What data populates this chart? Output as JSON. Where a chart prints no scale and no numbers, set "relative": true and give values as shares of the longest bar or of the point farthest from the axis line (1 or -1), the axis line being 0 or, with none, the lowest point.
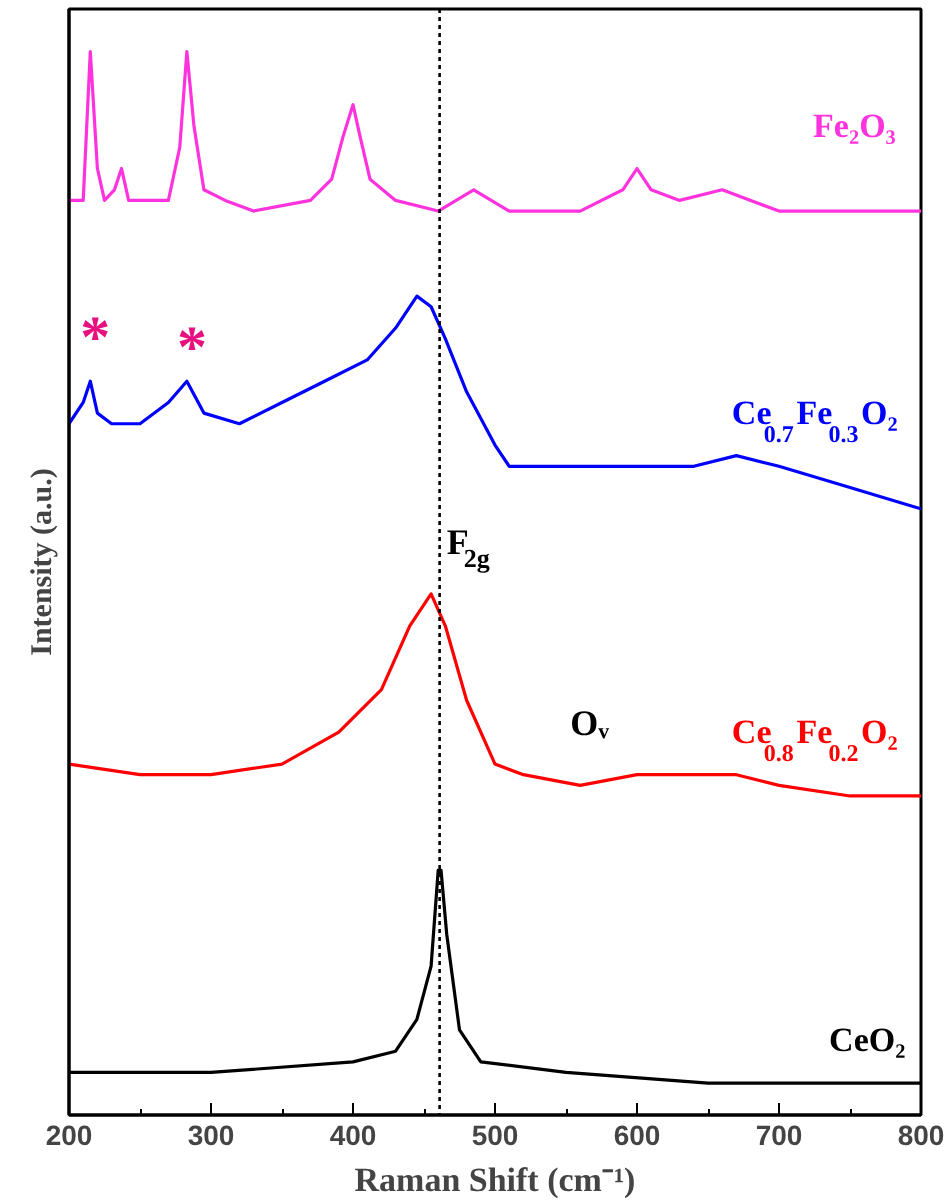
{
  "chart_data": {
    "type": "line",
    "relative": true,
    "xlabel": "Raman Shift (cm⁻¹)",
    "ylabel": "Intensity (a.u.)",
    "xlim": [
      200,
      800
    ],
    "xticks": [
      200,
      300,
      400,
      500,
      600,
      700,
      800
    ],
    "grid": false,
    "series": [
      {
        "name": "Fe₂O₃",
        "color": "#ff33dd",
        "x": [
          200,
          210,
          215,
          220,
          225,
          232,
          237,
          242,
          250,
          270,
          278,
          283,
          288,
          295,
          310,
          330,
          370,
          385,
          393,
          400,
          405,
          412,
          430,
          460,
          485,
          510,
          560,
          590,
          600,
          610,
          630,
          660,
          700,
          760,
          800
        ],
        "values": [
          0.86,
          0.86,
          1.0,
          0.89,
          0.86,
          0.87,
          0.89,
          0.86,
          0.86,
          0.86,
          0.91,
          1.0,
          0.93,
          0.87,
          0.86,
          0.85,
          0.86,
          0.88,
          0.92,
          0.95,
          0.92,
          0.88,
          0.86,
          0.85,
          0.87,
          0.85,
          0.85,
          0.87,
          0.89,
          0.87,
          0.86,
          0.87,
          0.85,
          0.85,
          0.85
        ]
      },
      {
        "name": "Ce$_{0.7}$Fe$_{0.3}$O₂",
        "color": "#0000ff",
        "x": [
          200,
          210,
          215,
          220,
          230,
          250,
          270,
          283,
          295,
          320,
          350,
          380,
          410,
          430,
          445,
          455,
          465,
          480,
          500,
          510,
          550,
          600,
          640,
          670,
          700,
          750,
          800
        ],
        "values": [
          0.65,
          0.67,
          0.69,
          0.66,
          0.65,
          0.65,
          0.67,
          0.69,
          0.66,
          0.65,
          0.67,
          0.69,
          0.71,
          0.74,
          0.77,
          0.76,
          0.73,
          0.68,
          0.63,
          0.61,
          0.61,
          0.61,
          0.61,
          0.62,
          0.61,
          0.59,
          0.57
        ]
      },
      {
        "name": "Ce$_{0.8}$Fe$_{0.2}$O₂",
        "color": "#ff0000",
        "x": [
          200,
          250,
          300,
          350,
          390,
          420,
          440,
          455,
          465,
          480,
          500,
          520,
          560,
          600,
          640,
          670,
          700,
          750,
          800
        ],
        "values": [
          0.33,
          0.32,
          0.32,
          0.33,
          0.36,
          0.4,
          0.46,
          0.49,
          0.46,
          0.39,
          0.33,
          0.32,
          0.31,
          0.32,
          0.32,
          0.32,
          0.31,
          0.3,
          0.3
        ]
      },
      {
        "name": "CeO₂",
        "color": "#000000",
        "x": [
          200,
          300,
          400,
          430,
          445,
          455,
          460,
          462,
          466,
          475,
          490,
          550,
          650,
          800
        ],
        "values": [
          0.04,
          0.04,
          0.05,
          0.06,
          0.09,
          0.14,
          0.23,
          0.23,
          0.17,
          0.08,
          0.05,
          0.04,
          0.03,
          0.03
        ]
      }
    ],
    "ref_lines": [
      {
        "axis": "x",
        "value": 461,
        "line_style": "dotted",
        "color": "#000000"
      }
    ],
    "annotations": [
      "*",
      "*",
      "F$_{2g}$",
      "Oᵥ"
    ]
  }
}
